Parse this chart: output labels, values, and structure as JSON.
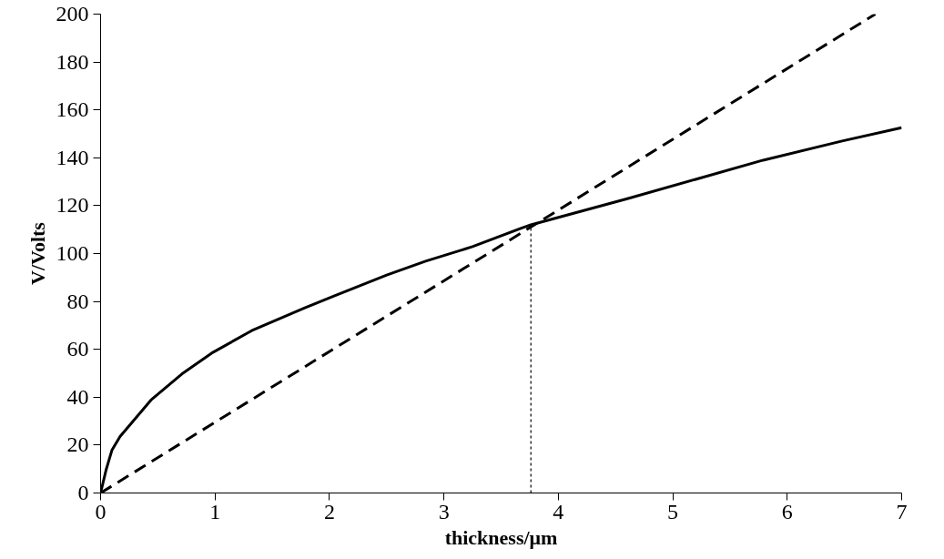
{
  "chart_data": {
    "type": "line",
    "xlabel": "thickness/μm",
    "ylabel": "V/Volts",
    "xlim": [
      0,
      7
    ],
    "ylim": [
      0,
      200
    ],
    "xticks": [
      0,
      1,
      2,
      3,
      4,
      5,
      6,
      7
    ],
    "yticks": [
      0,
      20,
      40,
      60,
      80,
      100,
      120,
      140,
      160,
      180,
      200
    ],
    "series": [
      {
        "color": "#000000",
        "line_style": "solid",
        "x": [
          0,
          0.05,
          0.1,
          0.17,
          0.44,
          0.71,
          0.97,
          1.32,
          1.78,
          2.04,
          2.5,
          2.84,
          3.25,
          3.66,
          3.76,
          4.61,
          5.2,
          5.79,
          6.48,
          7.0
        ],
        "values": [
          0,
          10,
          18,
          23.6,
          38.8,
          49.7,
          58.4,
          67.8,
          77.2,
          82.3,
          91,
          96.8,
          102.9,
          110.3,
          112,
          123,
          131,
          139,
          147,
          152.6
        ]
      },
      {
        "color": "#000000",
        "line_style": "dashed",
        "x": [
          0,
          6.77
        ],
        "values": [
          0,
          200
        ]
      },
      {
        "color": "#000000",
        "line_style": "dotted",
        "x": [
          3.76,
          3.76
        ],
        "values": [
          0,
          112
        ]
      }
    ]
  }
}
